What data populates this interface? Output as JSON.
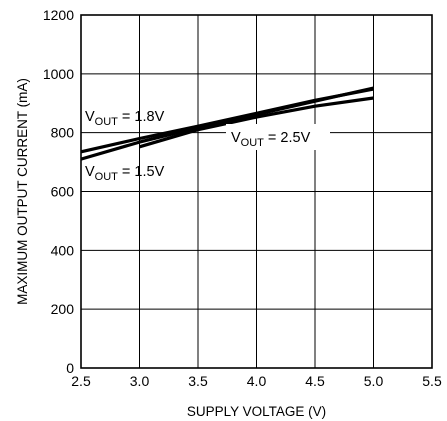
{
  "chart_data": {
    "type": "line",
    "title": "",
    "xlabel": "SUPPLY VOLTAGE (V)",
    "ylabel": "MAXIMUM OUTPUT CURRENT (mA)",
    "xlim": [
      2.5,
      5.5
    ],
    "ylim": [
      0,
      1200
    ],
    "xticks": [
      2.5,
      3.0,
      3.5,
      4.0,
      4.5,
      5.0,
      5.5
    ],
    "yticks": [
      0,
      200,
      400,
      600,
      800,
      1000,
      1200
    ],
    "xtick_labels": [
      "2.5",
      "3.0",
      "3.5",
      "4.0",
      "4.5",
      "5.0",
      "5.5"
    ],
    "ytick_labels": [
      "0",
      "200",
      "400",
      "600",
      "800",
      "1000",
      "1200"
    ],
    "grid": true,
    "series": [
      {
        "name": "V_OUT = 1.8V",
        "label_main": "V",
        "label_sub": "OUT",
        "label_rest": " = 1.8V",
        "x": [
          2.5,
          3.0,
          3.5,
          4.0,
          4.5,
          5.0
        ],
        "y": [
          735,
          780,
          822,
          866,
          910,
          948
        ]
      },
      {
        "name": "V_OUT = 1.5V",
        "label_main": "V",
        "label_sub": "OUT",
        "label_rest": " = 1.5V",
        "x": [
          2.5,
          3.0,
          3.5,
          4.0,
          4.5,
          5.0
        ],
        "y": [
          710,
          768,
          817,
          862,
          907,
          952
        ]
      },
      {
        "name": "V_OUT = 2.5V",
        "label_main": "V",
        "label_sub": "OUT",
        "label_rest": " = 2.5V",
        "x": [
          3.0,
          3.5,
          4.0,
          4.5,
          5.0
        ],
        "y": [
          752,
          810,
          853,
          890,
          918
        ]
      }
    ]
  }
}
